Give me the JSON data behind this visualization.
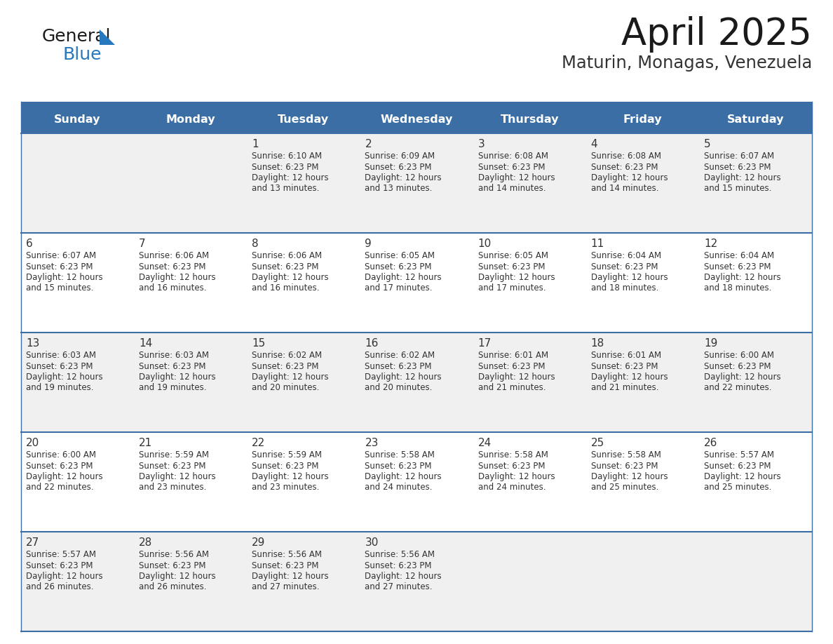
{
  "title": "April 2025",
  "subtitle": "Maturin, Monagas, Venezuela",
  "days_of_week": [
    "Sunday",
    "Monday",
    "Tuesday",
    "Wednesday",
    "Thursday",
    "Friday",
    "Saturday"
  ],
  "header_bg_color": "#3A6EA5",
  "header_text_color": "#FFFFFF",
  "cell_bg_row0": "#F0F0F0",
  "cell_bg_row1": "#FFFFFF",
  "cell_bg_row2": "#F0F0F0",
  "cell_bg_row3": "#FFFFFF",
  "cell_bg_row4": "#F0F0F0",
  "cell_border_color": "#3A6EA5",
  "title_color": "#1a1a1a",
  "subtitle_color": "#333333",
  "day_number_color": "#333333",
  "cell_text_color": "#333333",
  "logo_text_color": "#1a1a1a",
  "logo_blue_color": "#2878BE",
  "logo_triangle_color": "#2878BE",
  "calendar_data": [
    [
      {
        "day": null,
        "sunrise": null,
        "sunset": null,
        "daylight_line1": null,
        "daylight_line2": null
      },
      {
        "day": null,
        "sunrise": null,
        "sunset": null,
        "daylight_line1": null,
        "daylight_line2": null
      },
      {
        "day": 1,
        "sunrise": "6:10 AM",
        "sunset": "6:23 PM",
        "daylight_line1": "12 hours",
        "daylight_line2": "and 13 minutes."
      },
      {
        "day": 2,
        "sunrise": "6:09 AM",
        "sunset": "6:23 PM",
        "daylight_line1": "12 hours",
        "daylight_line2": "and 13 minutes."
      },
      {
        "day": 3,
        "sunrise": "6:08 AM",
        "sunset": "6:23 PM",
        "daylight_line1": "12 hours",
        "daylight_line2": "and 14 minutes."
      },
      {
        "day": 4,
        "sunrise": "6:08 AM",
        "sunset": "6:23 PM",
        "daylight_line1": "12 hours",
        "daylight_line2": "and 14 minutes."
      },
      {
        "day": 5,
        "sunrise": "6:07 AM",
        "sunset": "6:23 PM",
        "daylight_line1": "12 hours",
        "daylight_line2": "and 15 minutes."
      }
    ],
    [
      {
        "day": 6,
        "sunrise": "6:07 AM",
        "sunset": "6:23 PM",
        "daylight_line1": "12 hours",
        "daylight_line2": "and 15 minutes."
      },
      {
        "day": 7,
        "sunrise": "6:06 AM",
        "sunset": "6:23 PM",
        "daylight_line1": "12 hours",
        "daylight_line2": "and 16 minutes."
      },
      {
        "day": 8,
        "sunrise": "6:06 AM",
        "sunset": "6:23 PM",
        "daylight_line1": "12 hours",
        "daylight_line2": "and 16 minutes."
      },
      {
        "day": 9,
        "sunrise": "6:05 AM",
        "sunset": "6:23 PM",
        "daylight_line1": "12 hours",
        "daylight_line2": "and 17 minutes."
      },
      {
        "day": 10,
        "sunrise": "6:05 AM",
        "sunset": "6:23 PM",
        "daylight_line1": "12 hours",
        "daylight_line2": "and 17 minutes."
      },
      {
        "day": 11,
        "sunrise": "6:04 AM",
        "sunset": "6:23 PM",
        "daylight_line1": "12 hours",
        "daylight_line2": "and 18 minutes."
      },
      {
        "day": 12,
        "sunrise": "6:04 AM",
        "sunset": "6:23 PM",
        "daylight_line1": "12 hours",
        "daylight_line2": "and 18 minutes."
      }
    ],
    [
      {
        "day": 13,
        "sunrise": "6:03 AM",
        "sunset": "6:23 PM",
        "daylight_line1": "12 hours",
        "daylight_line2": "and 19 minutes."
      },
      {
        "day": 14,
        "sunrise": "6:03 AM",
        "sunset": "6:23 PM",
        "daylight_line1": "12 hours",
        "daylight_line2": "and 19 minutes."
      },
      {
        "day": 15,
        "sunrise": "6:02 AM",
        "sunset": "6:23 PM",
        "daylight_line1": "12 hours",
        "daylight_line2": "and 20 minutes."
      },
      {
        "day": 16,
        "sunrise": "6:02 AM",
        "sunset": "6:23 PM",
        "daylight_line1": "12 hours",
        "daylight_line2": "and 20 minutes."
      },
      {
        "day": 17,
        "sunrise": "6:01 AM",
        "sunset": "6:23 PM",
        "daylight_line1": "12 hours",
        "daylight_line2": "and 21 minutes."
      },
      {
        "day": 18,
        "sunrise": "6:01 AM",
        "sunset": "6:23 PM",
        "daylight_line1": "12 hours",
        "daylight_line2": "and 21 minutes."
      },
      {
        "day": 19,
        "sunrise": "6:00 AM",
        "sunset": "6:23 PM",
        "daylight_line1": "12 hours",
        "daylight_line2": "and 22 minutes."
      }
    ],
    [
      {
        "day": 20,
        "sunrise": "6:00 AM",
        "sunset": "6:23 PM",
        "daylight_line1": "12 hours",
        "daylight_line2": "and 22 minutes."
      },
      {
        "day": 21,
        "sunrise": "5:59 AM",
        "sunset": "6:23 PM",
        "daylight_line1": "12 hours",
        "daylight_line2": "and 23 minutes."
      },
      {
        "day": 22,
        "sunrise": "5:59 AM",
        "sunset": "6:23 PM",
        "daylight_line1": "12 hours",
        "daylight_line2": "and 23 minutes."
      },
      {
        "day": 23,
        "sunrise": "5:58 AM",
        "sunset": "6:23 PM",
        "daylight_line1": "12 hours",
        "daylight_line2": "and 24 minutes."
      },
      {
        "day": 24,
        "sunrise": "5:58 AM",
        "sunset": "6:23 PM",
        "daylight_line1": "12 hours",
        "daylight_line2": "and 24 minutes."
      },
      {
        "day": 25,
        "sunrise": "5:58 AM",
        "sunset": "6:23 PM",
        "daylight_line1": "12 hours",
        "daylight_line2": "and 25 minutes."
      },
      {
        "day": 26,
        "sunrise": "5:57 AM",
        "sunset": "6:23 PM",
        "daylight_line1": "12 hours",
        "daylight_line2": "and 25 minutes."
      }
    ],
    [
      {
        "day": 27,
        "sunrise": "5:57 AM",
        "sunset": "6:23 PM",
        "daylight_line1": "12 hours",
        "daylight_line2": "and 26 minutes."
      },
      {
        "day": 28,
        "sunrise": "5:56 AM",
        "sunset": "6:23 PM",
        "daylight_line1": "12 hours",
        "daylight_line2": "and 26 minutes."
      },
      {
        "day": 29,
        "sunrise": "5:56 AM",
        "sunset": "6:23 PM",
        "daylight_line1": "12 hours",
        "daylight_line2": "and 27 minutes."
      },
      {
        "day": 30,
        "sunrise": "5:56 AM",
        "sunset": "6:23 PM",
        "daylight_line1": "12 hours",
        "daylight_line2": "and 27 minutes."
      },
      {
        "day": null,
        "sunrise": null,
        "sunset": null,
        "daylight_line1": null,
        "daylight_line2": null
      },
      {
        "day": null,
        "sunrise": null,
        "sunset": null,
        "daylight_line1": null,
        "daylight_line2": null
      },
      {
        "day": null,
        "sunrise": null,
        "sunset": null,
        "daylight_line1": null,
        "daylight_line2": null
      }
    ]
  ]
}
